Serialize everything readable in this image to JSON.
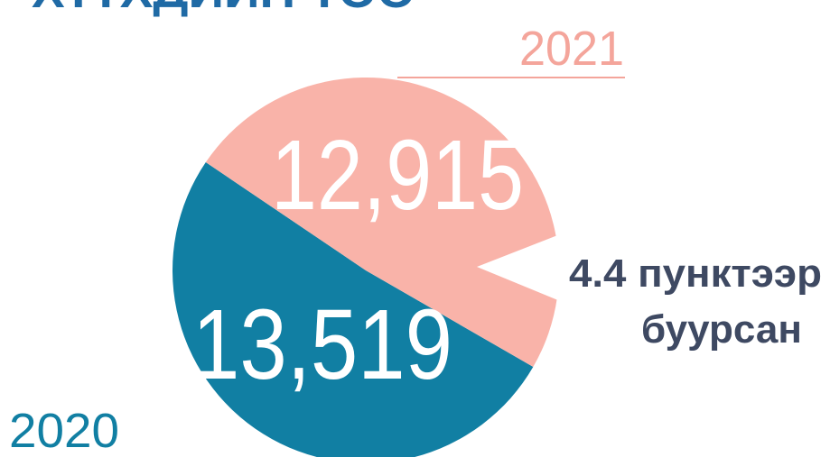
{
  "chart_data": {
    "type": "pie",
    "title": "ХҮҮХДИЙН ТОО",
    "categories": [
      "2020",
      "2021"
    ],
    "values": [
      13519,
      12915
    ],
    "value_labels": [
      "13,519",
      "12,915"
    ],
    "colors": [
      "#117fa3",
      "#f9b3a9"
    ],
    "annotation": [
      "4.4 пунктээр",
      "буурсан"
    ]
  }
}
